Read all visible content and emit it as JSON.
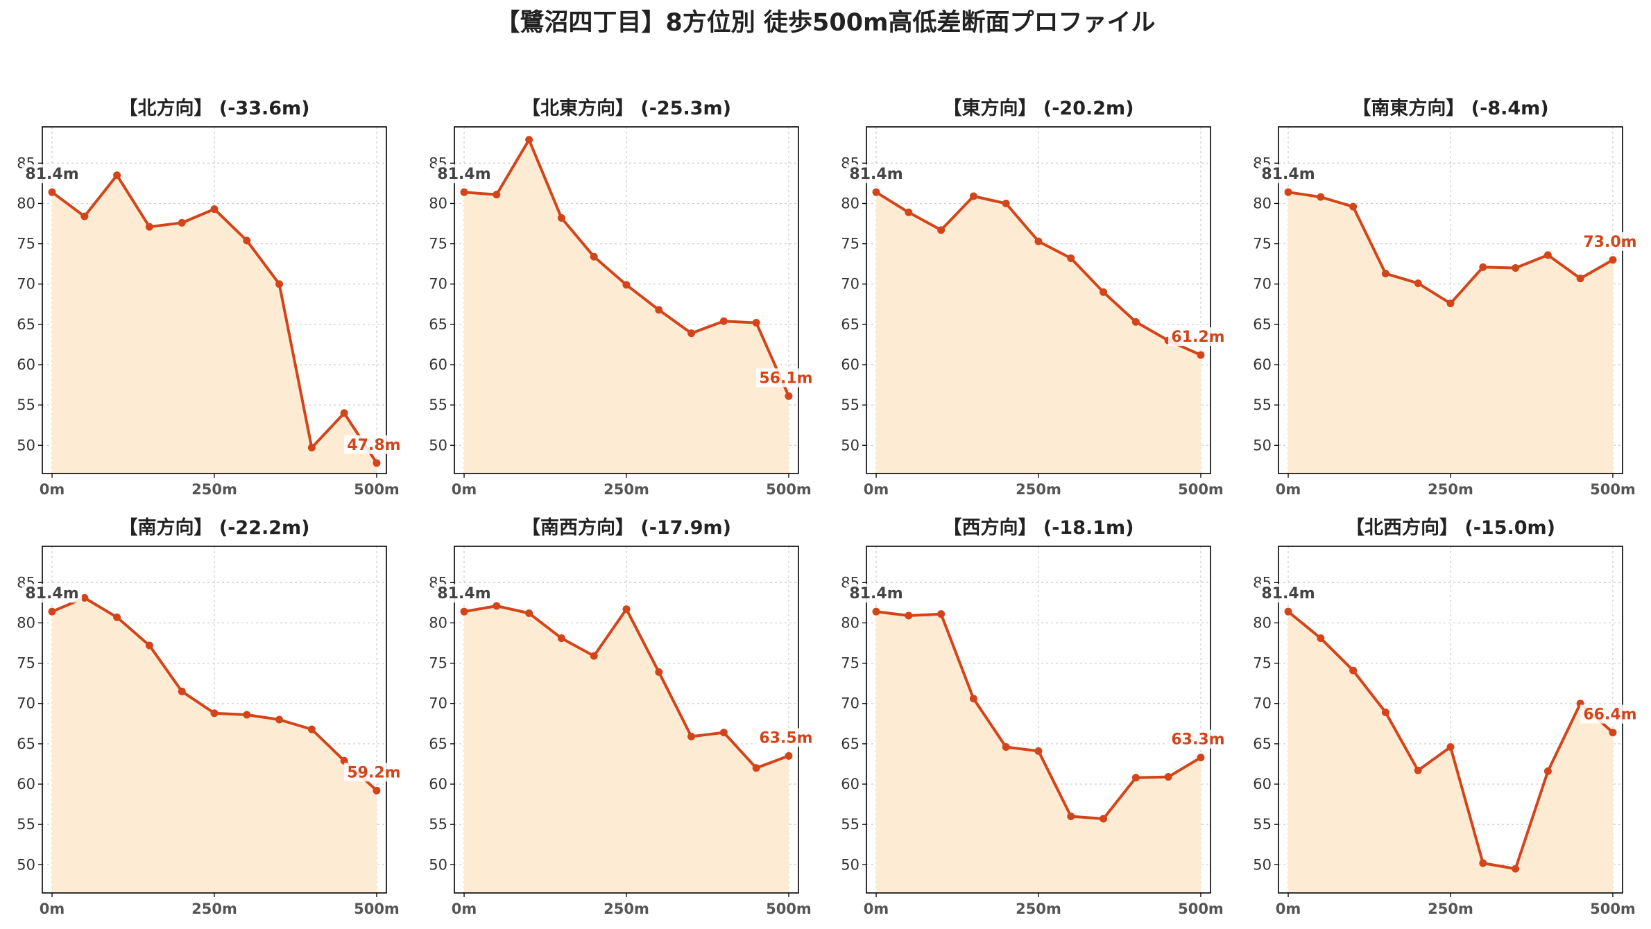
{
  "chart_data": {
    "type": "area",
    "title": "【鷺沼四丁目】8方位別 徒歩500m高低差断面プロファイル",
    "x_tick_labels": [
      "0m",
      "250m",
      "500m"
    ],
    "x_ticks": [
      0,
      250,
      500
    ],
    "x": [
      0,
      50,
      100,
      150,
      200,
      250,
      300,
      350,
      400,
      450,
      500
    ],
    "xlim": [
      -15,
      515
    ],
    "ylim": [
      46.5,
      89.5
    ],
    "y_ticks": [
      50,
      55,
      60,
      65,
      70,
      75,
      80,
      85
    ],
    "grid": true,
    "line_color": "#d4441a",
    "fill_color": "#fdebd3",
    "start_label": "81.4m",
    "panels": [
      {
        "title": "【北方向】 (-33.6m)",
        "end_label": "47.8m",
        "values": [
          81.4,
          78.4,
          83.5,
          77.1,
          77.6,
          79.3,
          75.4,
          70.0,
          49.7,
          54.0,
          47.8
        ]
      },
      {
        "title": "【北東方向】 (-25.3m)",
        "end_label": "56.1m",
        "values": [
          81.4,
          81.1,
          87.9,
          78.2,
          73.4,
          69.9,
          66.8,
          63.9,
          65.4,
          65.2,
          56.1
        ]
      },
      {
        "title": "【東方向】 (-20.2m)",
        "end_label": "61.2m",
        "values": [
          81.4,
          78.9,
          76.7,
          80.9,
          80.0,
          75.3,
          73.2,
          69.0,
          65.3,
          63.0,
          61.2
        ]
      },
      {
        "title": "【南東方向】 (-8.4m)",
        "end_label": "73.0m",
        "values": [
          81.4,
          80.8,
          79.6,
          71.3,
          70.1,
          67.6,
          72.1,
          72.0,
          73.6,
          70.7,
          73.0
        ]
      },
      {
        "title": "【南方向】 (-22.2m)",
        "end_label": "59.2m",
        "values": [
          81.4,
          83.1,
          80.7,
          77.2,
          71.5,
          68.8,
          68.6,
          68.0,
          66.8,
          62.9,
          59.2
        ]
      },
      {
        "title": "【南西方向】 (-17.9m)",
        "end_label": "63.5m",
        "values": [
          81.4,
          82.1,
          81.2,
          78.1,
          75.9,
          81.7,
          73.9,
          65.9,
          66.4,
          62.0,
          63.5
        ]
      },
      {
        "title": "【西方向】 (-18.1m)",
        "end_label": "63.3m",
        "values": [
          81.4,
          80.9,
          81.1,
          70.6,
          64.6,
          64.1,
          56.0,
          55.7,
          60.8,
          60.9,
          63.3
        ]
      },
      {
        "title": "【北西方向】 (-15.0m)",
        "end_label": "66.4m",
        "values": [
          81.4,
          78.1,
          74.1,
          68.9,
          61.7,
          64.6,
          50.2,
          49.5,
          61.6,
          70.0,
          66.4
        ]
      }
    ]
  }
}
